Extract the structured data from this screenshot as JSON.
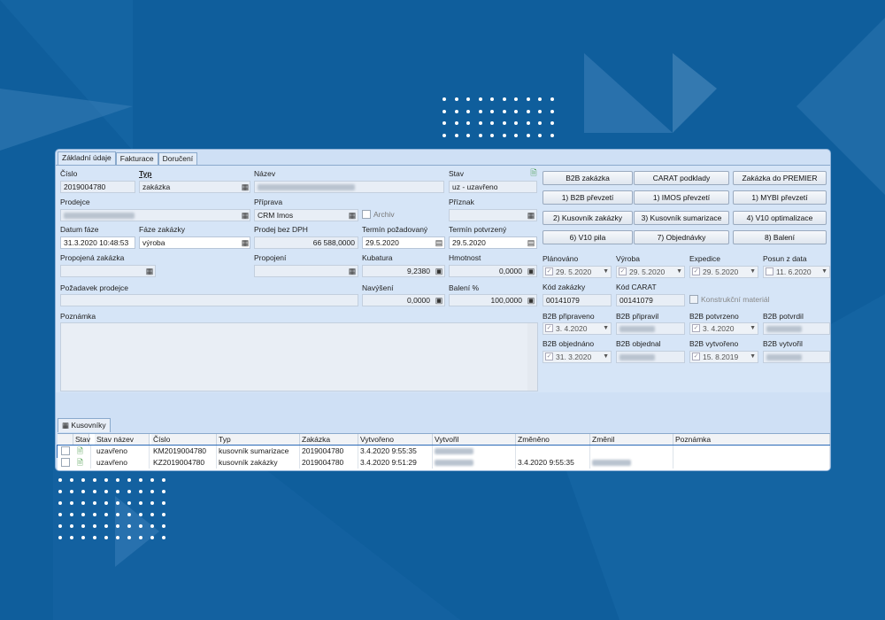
{
  "tabs": [
    "Základní údaje",
    "Fakturace",
    "Doručení"
  ],
  "form": {
    "cislo_label": "Číslo",
    "cislo": "2019004780",
    "typ_label": "Typ",
    "typ": "zakázka",
    "nazev_label": "Název",
    "stav_label": "Stav",
    "stav": "uz - uzavřeno",
    "prodejce_label": "Prodejce",
    "priprava_label": "Příprava",
    "priprava": "CRM Imos",
    "archiv_label": "Archiv",
    "priznak_label": "Příznak",
    "datum_faze_label": "Datum fáze",
    "datum_faze": "31.3.2020 10:48:53",
    "faze_label": "Fáze zakázky",
    "faze": "výroba",
    "prodej_label": "Prodej bez DPH",
    "prodej": "66 588,0000",
    "termin_poz_label": "Termín požadovaný",
    "termin_poz": "29.5.2020",
    "termin_pot_label": "Termín potvrzený",
    "termin_pot": "29.5.2020",
    "propojena_label": "Propojená zakázka",
    "propojeni_label": "Propojení",
    "kubatura_label": "Kubatura",
    "kubatura": "9,2380",
    "hmotnost_label": "Hmotnost",
    "hmotnost": "0,0000",
    "pozadavek_label": "Požadavek prodejce",
    "navyseni_label": "Navýšení",
    "navyseni": "0,0000",
    "baleni_label": "Balení %",
    "baleni": "100,0000",
    "poznamka_label": "Poznámka"
  },
  "buttons": [
    [
      "B2B zakázka",
      "CARAT podklady",
      "Zakázka do PREMIER"
    ],
    [
      "1) B2B převzetí",
      "1) IMOS převzetí",
      "1) MYBI převzetí"
    ],
    [
      "2) Kusovník zakázky",
      "3) Kusovník sumarizace",
      "4) V10 optimalizace"
    ],
    [
      "6) V10 pila",
      "7) Objednávky",
      "8) Balení"
    ]
  ],
  "dates": {
    "planovano_label": "Plánováno",
    "planovano": "29. 5.2020",
    "vyroba_label": "Výroba",
    "vyroba": "29. 5.2020",
    "expedice_label": "Expedice",
    "expedice": "29. 5.2020",
    "posun_label": "Posun z data",
    "posun": "11. 6.2020",
    "kod_zakazky_label": "Kód zakázky",
    "kod_zakazky": "00141079",
    "kod_carat_label": "Kód CARAT",
    "kod_carat": "00141079",
    "konstrukcni_label": "Konstrukční materiál",
    "b2b_pripraveno_label": "B2B připraveno",
    "b2b_pripraveno": "3. 4.2020",
    "b2b_pripravil_label": "B2B připravil",
    "b2b_potvrzeno_label": "B2B potvrzeno",
    "b2b_potvrzeno": "3. 4.2020",
    "b2b_potvrdil_label": "B2B potvrdil",
    "b2b_objednano_label": "B2B objednáno",
    "b2b_objednano": "31. 3.2020",
    "b2b_objednal_label": "B2B objednal",
    "b2b_vytvoreno_label": "B2B vytvořeno",
    "b2b_vytvoreno": "15. 8.2019",
    "b2b_vytvoril_label": "B2B vytvořil"
  },
  "grid": {
    "tab": "Kusovníky",
    "headers": [
      "Stav",
      "Stav název",
      "Číslo",
      "Typ",
      "Zakázka",
      "Vytvořeno",
      "Vytvořil",
      "Změněno",
      "Změnil",
      "Poznámka"
    ],
    "rows": [
      {
        "stav_nazev": "uzavřeno",
        "cislo": "KM2019004780",
        "typ": "kusovník sumarizace",
        "zakazka": "2019004780",
        "vytvoreno": "3.4.2020 9:55:35",
        "zmeneno": ""
      },
      {
        "stav_nazev": "uzavřeno",
        "cislo": "KZ2019004780",
        "typ": "kusovník zakázky",
        "zakazka": "2019004780",
        "vytvoreno": "3.4.2020 9:51:29",
        "zmeneno": "3.4.2020 9:55:35"
      }
    ]
  },
  "colors": {
    "background": "#0f5e9c",
    "window": "#cfe0f5",
    "panel": "#d6e5f7"
  }
}
